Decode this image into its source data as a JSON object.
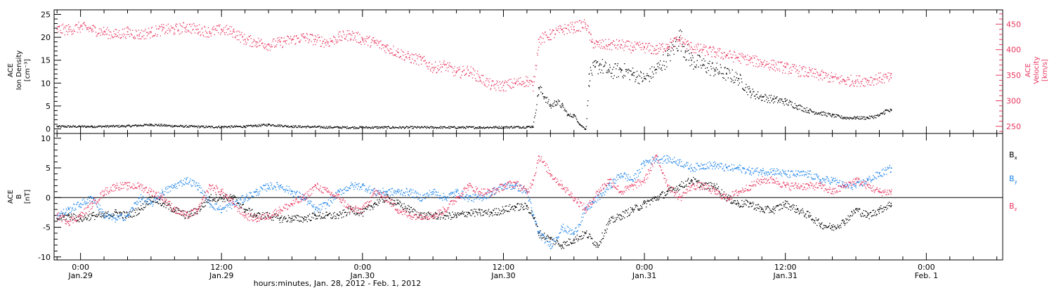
{
  "colors": {
    "black": "#000000",
    "pink": "#e8365f",
    "blue": "#1a82e8"
  },
  "x_axis": {
    "ticks": [
      {
        "time": "0:00",
        "date": "Jan.29",
        "h": 24
      },
      {
        "time": "12:00",
        "date": "Jan.29",
        "h": 36
      },
      {
        "time": "0:00",
        "date": "Jan.30",
        "h": 48
      },
      {
        "time": "12:00",
        "date": "Jan.30",
        "h": 60
      },
      {
        "time": "0:00",
        "date": "Jan.31",
        "h": 72
      },
      {
        "time": "12:00",
        "date": "Jan.31",
        "h": 84
      },
      {
        "time": "0:00",
        "date": "Feb. 1",
        "h": 96
      }
    ],
    "label": "hours:minutes, Jan. 28, 2012 - Feb. 1, 2012",
    "range_hours": [
      21.75,
      102.5
    ]
  },
  "top_panel": {
    "left_axis": {
      "lines": [
        "ACE",
        "Ion Density",
        "[cm⁻³]"
      ],
      "ticks": [
        0,
        5,
        10,
        15,
        20,
        25
      ],
      "range": [
        -1,
        26
      ]
    },
    "right_axis": {
      "lines": [
        "ACE",
        "Velocity",
        "[km/s]"
      ],
      "ticks": [
        250,
        300,
        350,
        400,
        450
      ],
      "range": [
        236,
        478
      ]
    }
  },
  "bottom_panel": {
    "left_axis": {
      "lines": [
        "ACE",
        "B",
        "[nT]"
      ],
      "ticks": [
        -10,
        -5,
        0,
        5,
        10
      ],
      "range": [
        -10.5,
        10.8
      ]
    },
    "legend": [
      {
        "label": "B",
        "sub": "x",
        "color": "#000000"
      },
      {
        "label": "B",
        "sub": "y",
        "color": "#1a82e8"
      },
      {
        "label": "B",
        "sub": "z",
        "color": "#e8365f"
      }
    ]
  },
  "chart_data": [
    {
      "type": "scatter",
      "panel": "top",
      "xlabel": "hours:minutes, Jan. 28, 2012 - Feb. 1, 2012",
      "series": [
        {
          "axis": "left",
          "color": "#000000",
          "x": [
            22,
            25,
            28,
            30,
            32,
            35,
            38,
            40,
            42,
            46,
            50,
            54,
            58,
            62,
            62.5,
            63.0,
            63.5,
            64,
            64.5,
            65,
            65.5,
            66,
            66.5,
            67,
            67.3,
            67.8,
            68.2,
            69,
            70,
            71,
            72,
            73,
            74,
            74.5,
            75,
            75.5,
            76,
            77,
            78,
            79,
            80,
            81,
            82,
            83,
            84,
            85,
            86,
            87,
            88,
            89,
            90,
            91,
            92,
            92.5,
            93
          ],
          "y": [
            0.6,
            0.6,
            0.7,
            1.0,
            0.7,
            0.5,
            0.6,
            1.0,
            0.6,
            0.4,
            0.4,
            0.4,
            0.4,
            0.5,
            0.6,
            9,
            7,
            5,
            6,
            5,
            3,
            3,
            1,
            0,
            12,
            13.5,
            14,
            12.5,
            13,
            12,
            11,
            13,
            16,
            18,
            20,
            17,
            15,
            14,
            13,
            12,
            11,
            8,
            7,
            6.5,
            6,
            5,
            4,
            3.5,
            3,
            2.5,
            2.5,
            2.5,
            3,
            4,
            4
          ]
        },
        {
          "axis": "right",
          "color": "#e8365f",
          "x": [
            22,
            23,
            24,
            25,
            26,
            27,
            28,
            29,
            30,
            31,
            32,
            33,
            34,
            35,
            36,
            37,
            38,
            39,
            40,
            41,
            42,
            43,
            44,
            45,
            46,
            47,
            48,
            49,
            50,
            51,
            52,
            53,
            54,
            55,
            56,
            57,
            58,
            59,
            60,
            61,
            62,
            62.5,
            63,
            64,
            65,
            66,
            67,
            67.5,
            68,
            69,
            70,
            71,
            72,
            73,
            74,
            75,
            76,
            77,
            78,
            79,
            80,
            81,
            82,
            83,
            84,
            85,
            86,
            87,
            88,
            89,
            90,
            91,
            92,
            93
          ],
          "y": [
            440,
            440,
            445,
            440,
            435,
            430,
            435,
            430,
            435,
            440,
            440,
            445,
            440,
            435,
            440,
            435,
            420,
            415,
            410,
            415,
            420,
            425,
            420,
            415,
            425,
            430,
            420,
            415,
            405,
            395,
            385,
            380,
            365,
            370,
            355,
            360,
            345,
            330,
            330,
            335,
            340,
            330,
            420,
            430,
            440,
            445,
            450,
            415,
            410,
            410,
            410,
            405,
            405,
            400,
            410,
            420,
            405,
            400,
            395,
            390,
            385,
            380,
            375,
            370,
            365,
            360,
            355,
            350,
            345,
            340,
            340,
            340,
            345,
            345
          ]
        }
      ]
    },
    {
      "type": "scatter",
      "panel": "bottom",
      "ylabel": "B [nT]",
      "series": [
        {
          "color": "#000000",
          "x": [
            22,
            23,
            24,
            25,
            26,
            27,
            28,
            29,
            30,
            31,
            32,
            33,
            34,
            35,
            36,
            37,
            38,
            39,
            40,
            41,
            42,
            43,
            44,
            45,
            46,
            47,
            48,
            49,
            50,
            51,
            52,
            53,
            54,
            55,
            56,
            57,
            58,
            59,
            60,
            61,
            62,
            62.5,
            63,
            64,
            65,
            66,
            67,
            68,
            69,
            70,
            71,
            72,
            73,
            74,
            75,
            76,
            77,
            78,
            79,
            80,
            81,
            82,
            83,
            84,
            85,
            86,
            87,
            88,
            89,
            90,
            91,
            92,
            93
          ],
          "y": [
            -3.5,
            -3,
            -3.5,
            -3,
            -3,
            -2.5,
            -3,
            -2,
            0,
            -1,
            -2,
            -3,
            -2,
            0,
            0,
            0,
            -2,
            -3,
            -3,
            -3.5,
            -3.5,
            -3.5,
            -3,
            -3,
            -3,
            -2,
            -2.5,
            -1,
            0,
            -1,
            -2,
            -3,
            -3,
            -3,
            -3,
            -2.5,
            -2.5,
            -2.5,
            -2,
            -1.5,
            -1.5,
            -3,
            -6,
            -7,
            -8,
            -7,
            -6,
            -8,
            -4,
            -3,
            -2,
            -1,
            0,
            1,
            2,
            3,
            2,
            2,
            0,
            -1,
            -1,
            -2,
            -2,
            -1,
            -2,
            -3,
            -4.5,
            -5,
            -4,
            -2,
            -3,
            -2,
            -1
          ]
        },
        {
          "color": "#1a82e8",
          "x": [
            22,
            23,
            24,
            25,
            26,
            27,
            28,
            29,
            30,
            31,
            32,
            33,
            34,
            35,
            36,
            37,
            38,
            39,
            40,
            41,
            42,
            43,
            44,
            45,
            46,
            47,
            48,
            49,
            50,
            51,
            52,
            53,
            54,
            55,
            56,
            57,
            58,
            59,
            60,
            61,
            62,
            62.5,
            63,
            64,
            65,
            66,
            67,
            68,
            69,
            70,
            71,
            72,
            73,
            74,
            75,
            76,
            77,
            78,
            79,
            80,
            81,
            82,
            83,
            84,
            85,
            86,
            87,
            88,
            89,
            90,
            91,
            92,
            93
          ],
          "y": [
            -3,
            -2,
            -1,
            0,
            -3,
            -3.5,
            -3,
            0,
            -1,
            1,
            2,
            3,
            2,
            -1,
            -2,
            -1,
            0,
            1,
            2,
            2,
            1,
            0,
            -2,
            -1,
            1,
            2,
            2,
            1,
            1,
            1,
            1,
            0,
            1,
            0,
            1,
            0,
            0,
            1,
            2,
            2,
            1,
            -3,
            -6,
            -8,
            -5,
            -6,
            -2,
            0,
            2,
            4,
            3,
            6,
            6.5,
            6.5,
            6,
            5,
            5.5,
            5.5,
            5,
            5,
            4.5,
            4.5,
            4.5,
            4,
            4,
            4,
            3,
            3,
            2,
            2,
            3,
            4,
            5
          ]
        },
        {
          "color": "#e8365f",
          "x": [
            22,
            23,
            24,
            25,
            26,
            27,
            28,
            29,
            30,
            31,
            32,
            33,
            34,
            35,
            36,
            37,
            38,
            39,
            40,
            41,
            42,
            43,
            44,
            45,
            46,
            47,
            48,
            49,
            50,
            51,
            52,
            53,
            54,
            55,
            56,
            57,
            58,
            59,
            60,
            61,
            62,
            62.5,
            63,
            64,
            65,
            66,
            67,
            68,
            69,
            70,
            71,
            72,
            73,
            74,
            75,
            76,
            77,
            78,
            79,
            80,
            81,
            82,
            83,
            84,
            85,
            86,
            87,
            88,
            89,
            90,
            91,
            92,
            93
          ],
          "y": [
            -3,
            -4,
            -3,
            -1,
            1,
            2,
            2,
            2,
            1,
            0,
            -2,
            -3,
            -2,
            2,
            1,
            -1,
            -3,
            -3.5,
            -3,
            -2,
            -1,
            0,
            2,
            1,
            0,
            -2,
            -2,
            1,
            0,
            -2,
            -3,
            -3,
            -3,
            -2,
            0,
            2,
            1,
            1,
            2,
            2.5,
            1,
            3,
            7,
            4,
            2,
            0,
            -2,
            1,
            3,
            1,
            2,
            3,
            7,
            2,
            0,
            2,
            2,
            1,
            0,
            1,
            2,
            3,
            3,
            2,
            2,
            2,
            2,
            1,
            2,
            3,
            2,
            1,
            1
          ]
        }
      ]
    }
  ]
}
